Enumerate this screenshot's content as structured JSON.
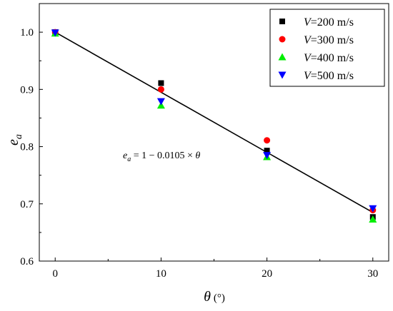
{
  "chart_data": {
    "type": "scatter",
    "xlabel_symbol": "θ",
    "xlabel_unit": "(°)",
    "ylabel_main": "e",
    "ylabel_sub": "a",
    "xlim": [
      -1.5,
      31.5
    ],
    "ylim": [
      0.6,
      1.05
    ],
    "xticks": [
      0,
      10,
      20,
      30
    ],
    "yticks": [
      0.6,
      0.7,
      0.8,
      0.9,
      1.0
    ],
    "ytick_labels": [
      "0.6",
      "0.7",
      "0.8",
      "0.9",
      "1.0"
    ],
    "x": [
      0,
      10,
      20,
      30
    ],
    "series": [
      {
        "var": "V",
        "label": "=200 m/s",
        "marker": "square",
        "color": "#000000",
        "values": [
          1.0,
          0.911,
          0.793,
          0.677
        ]
      },
      {
        "var": "V",
        "label": "=300 m/s",
        "marker": "circle",
        "color": "#ff0000",
        "values": [
          1.0,
          0.9,
          0.811,
          0.689
        ]
      },
      {
        "var": "V",
        "label": "=400 m/s",
        "marker": "triangle-up",
        "color": "#00ee00",
        "values": [
          0.998,
          0.872,
          0.782,
          0.673
        ]
      },
      {
        "var": "V",
        "label": "=500 m/s",
        "marker": "triangle-down",
        "color": "#0000ff",
        "values": [
          0.999,
          0.879,
          0.785,
          0.692
        ]
      }
    ],
    "fit_line": {
      "intercept": 1,
      "slope": -0.0105,
      "x_range": [
        0,
        30
      ]
    },
    "equation": {
      "lhs_main": "e",
      "lhs_sub": "a",
      "rhs": " = 1 − 0.0105 × ",
      "var": "θ"
    },
    "legend_position": "top-right",
    "grid": false
  }
}
